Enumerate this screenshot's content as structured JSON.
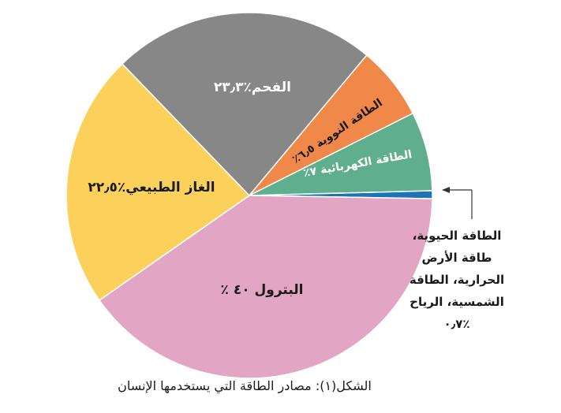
{
  "chart_data": {
    "type": "pie",
    "slices": [
      {
        "label": "البترول ٤٠ ٪",
        "value": 40,
        "color": "#e2a6c4"
      },
      {
        "label": "الغاز الطبيعي٪٢٢٫٥",
        "value": 22.5,
        "color": "#fcd15b"
      },
      {
        "label": "الفحم٪٢٣٫٣",
        "value": 23.3,
        "color": "#878787"
      },
      {
        "label": "الطاقة النووية ٦٫٥٪",
        "value": 6.5,
        "color": "#f0884a"
      },
      {
        "label": "الطاقة الكهربائية ٧٪",
        "value": 7,
        "color": "#5fae8e"
      },
      {
        "label": "الطاقة الحيوية، طاقة الأرض الحرارية، الطاقة الشمسية، الرياح ٪٠٫٧",
        "value": 0.7,
        "color": "#1c73b7"
      }
    ],
    "annotation": "الطاقة الحيوية،\nطاقة الأرض\nالحرارية، الطاقة\nالشمسية، الرياح\n٪٠٫٧",
    "caption": "الشكل(١): مصادر الطاقة التي يستخدمها الإنسان"
  }
}
